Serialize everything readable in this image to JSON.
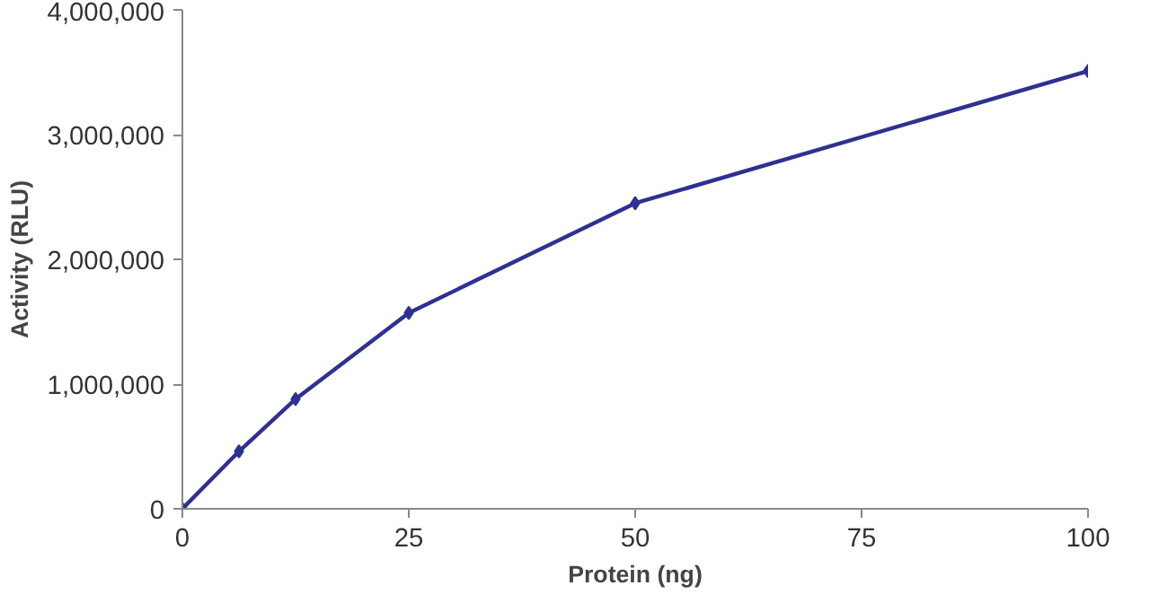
{
  "chart_data": {
    "type": "line",
    "xlabel": "Protein (ng)",
    "ylabel": "Activity (RLU)",
    "x": [
      0,
      6.25,
      12.5,
      25,
      50,
      100
    ],
    "series": [
      {
        "color": "#2e3192",
        "values": [
          0,
          460000,
          880000,
          1570000,
          2450000,
          3510000
        ]
      }
    ],
    "xlim": [
      0,
      100
    ],
    "xticks": [
      0,
      25,
      50,
      75,
      100
    ],
    "ylim": [
      0,
      4000000
    ],
    "yticks": [
      0,
      {
        "value": 1000000,
        "label": "1,000,000"
      },
      {
        "value": 2000000,
        "label": "2,000,000"
      },
      {
        "value": 3000000,
        "label": "3,000,000"
      },
      {
        "value": 4000000,
        "label": "4,000,000"
      }
    ],
    "grid": false,
    "marker": "diamond",
    "line_style": "solid"
  }
}
